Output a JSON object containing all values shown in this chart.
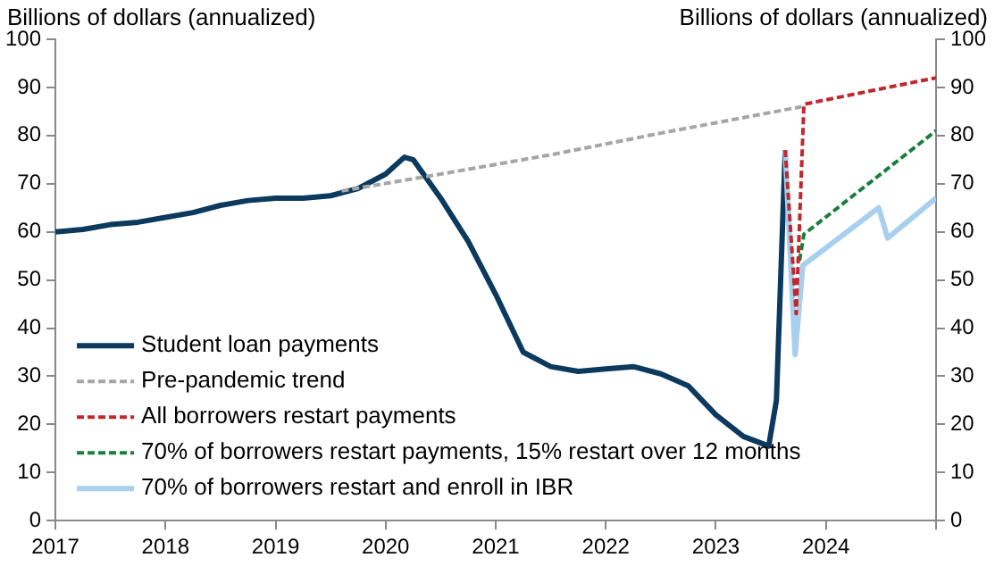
{
  "chart_data": {
    "type": "line",
    "ylabel": "Billions of dollars (annualized)",
    "y2label": "Billions of dollars (annualized)",
    "xlim": [
      2017,
      2025
    ],
    "xticks": [
      2017,
      2018,
      2019,
      2020,
      2021,
      2022,
      2023,
      2024,
      {
        "value": 2025,
        "label": null
      }
    ],
    "ylim": [
      0,
      100
    ],
    "yticks": [
      0,
      10,
      20,
      30,
      40,
      50,
      60,
      70,
      80,
      90,
      100
    ],
    "y2lim": [
      0,
      100
    ],
    "y2ticks": [
      0,
      10,
      20,
      30,
      40,
      50,
      60,
      70,
      80,
      90,
      100
    ],
    "grid": false,
    "legend": "bottom left",
    "marker": "none",
    "series": [
      {
        "name": "Student loan payments",
        "color": "#0b3a5e",
        "line_style": "solid",
        "x": [
          2017.0,
          2017.25,
          2017.5,
          2017.75,
          2018.0,
          2018.25,
          2018.5,
          2018.75,
          2019.0,
          2019.25,
          2019.5,
          2019.75,
          2020.0,
          2020.17,
          2020.25,
          2020.5,
          2020.75,
          2021.0,
          2021.25,
          2021.5,
          2021.75,
          2022.0,
          2022.25,
          2022.5,
          2022.75,
          2023.0,
          2023.25,
          2023.48,
          2023.55,
          2023.63
        ],
        "values": [
          60,
          60.5,
          61.5,
          62,
          63,
          64,
          65.5,
          66.5,
          67,
          67,
          67.5,
          69,
          72,
          75.5,
          75,
          67,
          58,
          47,
          35,
          32,
          31,
          31.5,
          32,
          30.5,
          28,
          22,
          17.5,
          15.5,
          25,
          77
        ]
      },
      {
        "name": "Pre-pandemic trend",
        "color": "#a6a6a6",
        "line_style": "dashed",
        "x": [
          2019.6,
          2020.5,
          2021.5,
          2022.5,
          2023.78
        ],
        "values": [
          68.5,
          72,
          76,
          80.5,
          86
        ]
      },
      {
        "name": "All borrowers restart payments",
        "color": "#c0282d",
        "line_style": "dashed",
        "x": [
          2023.63,
          2023.73,
          2023.8,
          2025
        ],
        "values": [
          77,
          43,
          86.5,
          92
        ]
      },
      {
        "name": "70% of borrowers restart payments, 15% restart over 12 months",
        "color": "#1a7f3c",
        "line_style": "dashed",
        "x": [
          2023.76,
          2023.8,
          2025
        ],
        "values": [
          54,
          59.5,
          81
        ]
      },
      {
        "name": "70% of borrowers restart and enroll in IBR",
        "color": "#a8d0ee",
        "line_style": "solid",
        "x": [
          2023.63,
          2023.72,
          2023.79,
          2024.48,
          2024.56,
          2025
        ],
        "values": [
          77,
          34.5,
          53,
          65,
          58.7,
          67
        ]
      }
    ]
  }
}
